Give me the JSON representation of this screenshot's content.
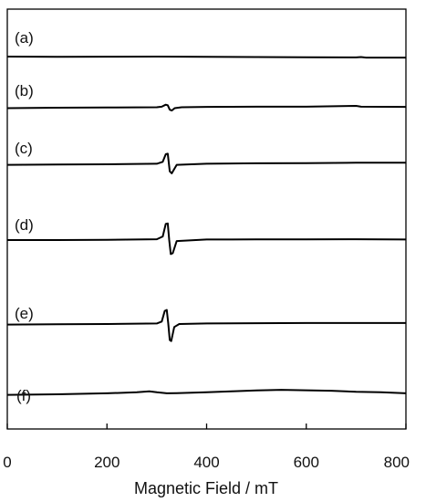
{
  "chart_data": {
    "type": "line",
    "title": "",
    "xlabel": "Magnetic Field / mT",
    "ylabel": "",
    "xlim": [
      0,
      800
    ],
    "xticks": [
      {
        "value": 0,
        "label": "0"
      },
      {
        "value": 200,
        "label": "200"
      },
      {
        "value": 400,
        "label": "400"
      },
      {
        "value": 600,
        "label": "600"
      },
      {
        "value": 800,
        "label": "800"
      }
    ],
    "grid": false,
    "legend": "none",
    "line_color": "#000000",
    "series": [
      {
        "label": "(a)",
        "x": [
          0,
          100,
          200,
          300,
          400,
          500,
          600,
          700,
          710,
          720,
          800
        ],
        "y": [
          0.0,
          -0.02,
          -0.01,
          0.0,
          -0.03,
          -0.05,
          -0.06,
          -0.08,
          -0.05,
          -0.1,
          -0.1
        ]
      },
      {
        "label": "(b)",
        "x": [
          0,
          100,
          200,
          300,
          310,
          318,
          322,
          326,
          330,
          336,
          350,
          400,
          500,
          600,
          700,
          710,
          800
        ],
        "y": [
          -0.05,
          0.0,
          0.02,
          0.05,
          0.1,
          0.3,
          0.25,
          -0.2,
          -0.28,
          -0.05,
          0.05,
          0.08,
          0.1,
          0.1,
          0.18,
          0.1,
          0.08
        ]
      },
      {
        "label": "(c)",
        "x": [
          0,
          100,
          200,
          300,
          312,
          318,
          322,
          326,
          330,
          340,
          400,
          500,
          600,
          700,
          800
        ],
        "y": [
          -0.05,
          -0.02,
          0.0,
          0.05,
          0.25,
          1.0,
          1.05,
          -0.7,
          -0.9,
          -0.05,
          0.05,
          0.1,
          0.12,
          0.15,
          0.15
        ]
      },
      {
        "label": "(d)",
        "x": [
          0,
          100,
          200,
          300,
          312,
          318,
          322,
          325,
          328,
          332,
          340,
          400,
          500,
          600,
          700,
          800
        ],
        "y": [
          0.0,
          0.0,
          0.02,
          0.08,
          0.35,
          1.6,
          1.65,
          0.0,
          -1.4,
          -1.3,
          -0.1,
          0.05,
          0.06,
          0.06,
          0.08,
          0.05
        ]
      },
      {
        "label": "(e)",
        "x": [
          0,
          100,
          200,
          300,
          310,
          316,
          320,
          323,
          326,
          329,
          335,
          345,
          400,
          500,
          600,
          700,
          800
        ],
        "y": [
          -0.05,
          -0.02,
          0.0,
          0.05,
          0.25,
          1.3,
          1.4,
          0.1,
          -1.6,
          -1.7,
          -0.3,
          0.0,
          0.05,
          0.08,
          0.1,
          0.1,
          0.1
        ]
      },
      {
        "label": "(f)",
        "x": [
          0,
          100,
          200,
          260,
          285,
          300,
          320,
          340,
          400,
          450,
          500,
          550,
          600,
          650,
          700,
          750,
          800
        ],
        "y": [
          -0.05,
          0.0,
          0.1,
          0.2,
          0.3,
          0.2,
          0.1,
          0.12,
          0.2,
          0.3,
          0.38,
          0.45,
          0.4,
          0.35,
          0.25,
          0.2,
          0.1
        ]
      }
    ]
  }
}
